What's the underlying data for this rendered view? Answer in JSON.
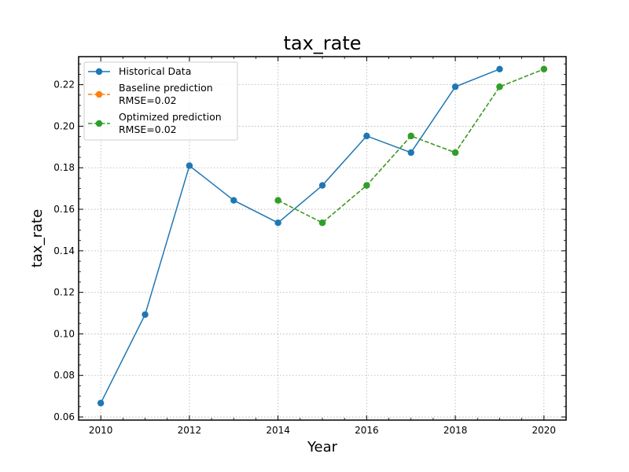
{
  "chart_data": {
    "type": "line",
    "title": "tax_rate",
    "xlabel": "Year",
    "ylabel": "tax_rate",
    "xlim": [
      2009.5,
      2020.5
    ],
    "ylim": [
      0.0585,
      0.2335
    ],
    "x_ticks": [
      2010,
      2012,
      2014,
      2016,
      2018,
      2020
    ],
    "x_tick_labels": [
      "2010",
      "2012",
      "2014",
      "2016",
      "2018",
      "2020"
    ],
    "y_ticks": [
      0.06,
      0.08,
      0.1,
      0.12,
      0.14,
      0.16,
      0.18,
      0.2,
      0.22
    ],
    "y_tick_labels": [
      "0.06",
      "0.08",
      "0.10",
      "0.12",
      "0.14",
      "0.16",
      "0.18",
      "0.20",
      "0.22"
    ],
    "grid": true,
    "legend_position": "top-left",
    "series": [
      {
        "name": "Historical Data",
        "color": "#1f77b4",
        "line_style": "solid",
        "x": [
          2010,
          2011,
          2012,
          2013,
          2014,
          2015,
          2016,
          2017,
          2018,
          2019
        ],
        "values": [
          0.0667,
          0.1093,
          0.181,
          0.1643,
          0.1535,
          0.1715,
          0.1953,
          0.1873,
          0.219,
          0.2275
        ]
      },
      {
        "name": "Baseline prediction",
        "legend_sub": "RMSE=0.02",
        "color": "#ff7f0e",
        "line_style": "dashed",
        "x": [
          2014,
          2015,
          2016,
          2017,
          2018,
          2019,
          2020
        ],
        "values": [
          0.1643,
          0.1535,
          0.1715,
          0.1953,
          0.1873,
          0.219,
          0.2275
        ]
      },
      {
        "name": "Optimized prediction",
        "legend_sub": "RMSE=0.02",
        "color": "#2ca02c",
        "line_style": "dashed",
        "x": [
          2014,
          2015,
          2016,
          2017,
          2018,
          2019,
          2020
        ],
        "values": [
          0.1643,
          0.1535,
          0.1715,
          0.1953,
          0.1873,
          0.219,
          0.2275
        ]
      }
    ]
  }
}
